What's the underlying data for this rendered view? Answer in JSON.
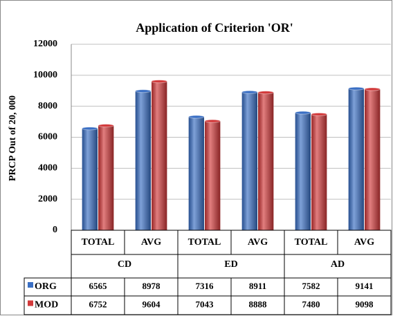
{
  "chart_data": {
    "type": "bar",
    "title": "Application of Criterion 'OR'",
    "y_label": "PRCP  Out of 20, 000",
    "categories": [
      "TOTAL",
      "AVG",
      "TOTAL",
      "AVG",
      "TOTAL",
      "AVG"
    ],
    "groups": [
      "CD",
      "ED",
      "AD"
    ],
    "series": [
      {
        "name": "ORG",
        "color": "#3a6fc4",
        "values": [
          6565,
          8978,
          7316,
          8911,
          7582,
          9141
        ]
      },
      {
        "name": "MOD",
        "color": "#d2393a",
        "values": [
          6752,
          9604,
          7043,
          8888,
          7480,
          9098
        ]
      }
    ],
    "ylim": [
      0,
      12000
    ],
    "yticks": [
      0,
      2000,
      4000,
      6000,
      8000,
      10000,
      12000
    ],
    "grid": true
  }
}
